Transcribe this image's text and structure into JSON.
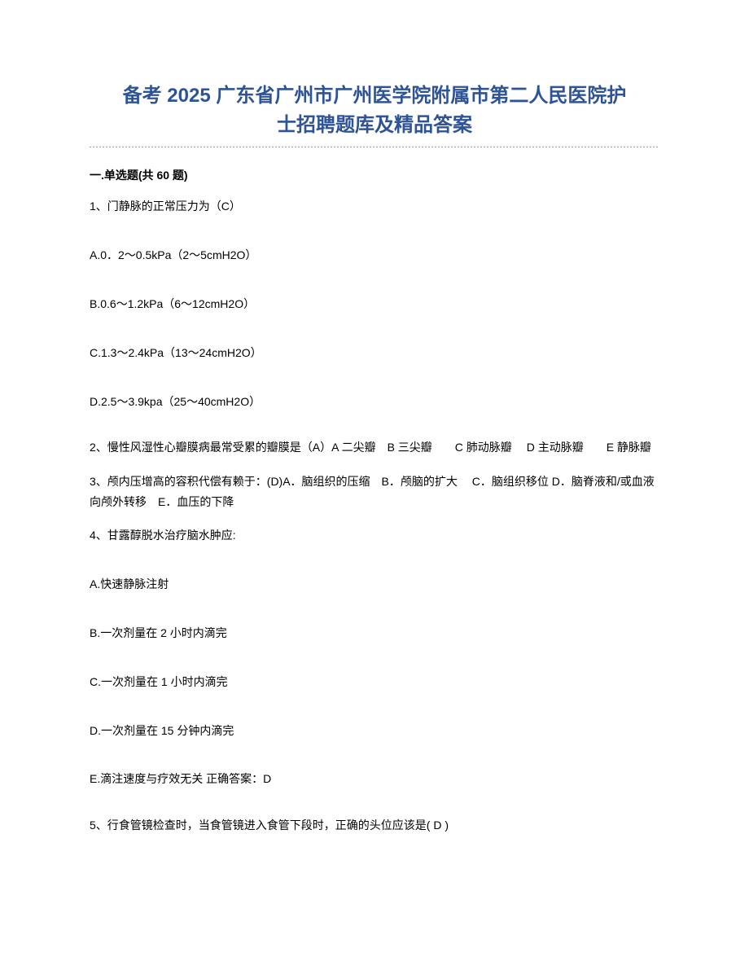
{
  "title_line1": "备考 2025 广东省广州市广州医学院附属市第二人民医院护",
  "title_line2": "士招聘题库及精品答案",
  "section_header": "一.单选题(共 60 题)",
  "q1": {
    "stem": "1、门静脉的正常压力为（C）",
    "a": "A.0．2～0.5kPa（2～5cmH2O）",
    "b": "B.0.6～1.2kPa（6～12cmH2O）",
    "c": "C.1.3～2.4kPa（13～24cmH2O）",
    "d": "D.2.5～3.9kpa（25～40cmH2O）"
  },
  "q2": "2、慢性风湿性心瓣膜病最常受累的瓣膜是（A）A 二尖瓣　B 三尖瓣　　C 肺动脉瓣　 D 主动脉瓣　　E 静脉瓣",
  "q3": "3、颅内压增高的容积代偿有赖于：(D)A．脑组织的压缩　B．颅脑的扩大　 C．脑组织移位 D．脑脊液和/或血液向颅外转移　E．血压的下降",
  "q4": {
    "stem": "4、甘露醇脱水治疗脑水肿应:",
    "a": "A.快速静脉注射",
    "b": "B.一次剂量在 2 小时内滴完",
    "c": "C.一次剂量在 1 小时内滴完",
    "d": "D.一次剂量在 15 分钟内滴完",
    "e": "E.滴注速度与疗效无关 正确答案：D"
  },
  "q5": "5、行食管镜检查时，当食管镜进入食管下段时，正确的头位应该是( D )",
  "colors": {
    "title_color": "#2e5496",
    "text_color": "#000000",
    "background": "#ffffff"
  }
}
